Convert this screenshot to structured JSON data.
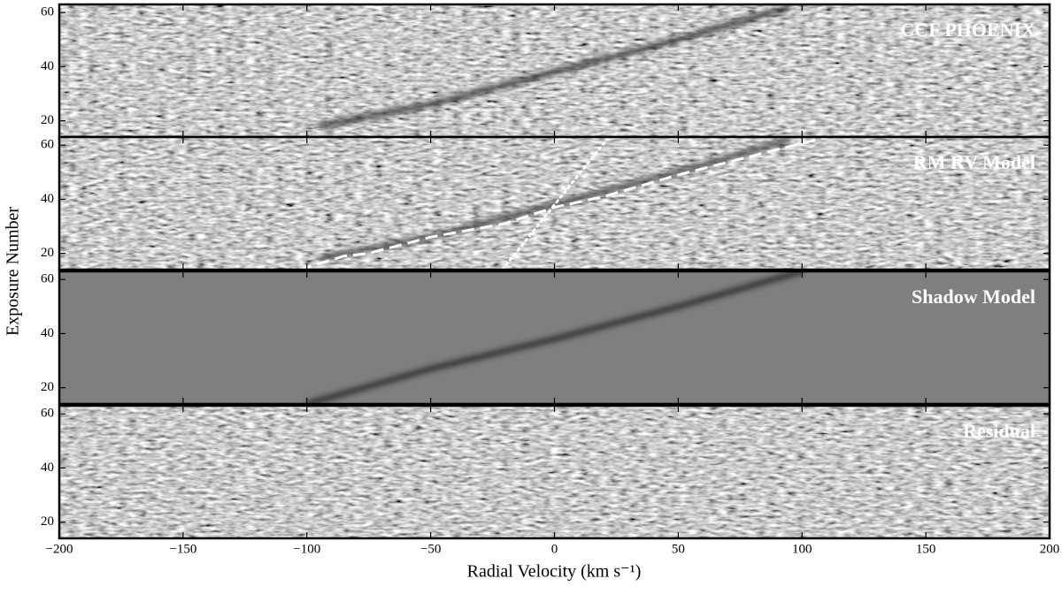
{
  "chart_data": {
    "type": "heatmap",
    "xlabel": "Radial Velocity (km s⁻¹)",
    "ylabel": "Exposure Number",
    "xlim": [
      -200,
      200
    ],
    "xticks": [
      {
        "value": -200,
        "label": "−200"
      },
      {
        "value": -150,
        "label": "−150"
      },
      {
        "value": -100,
        "label": "−100"
      },
      {
        "value": -50,
        "label": "−50"
      },
      0,
      50,
      100,
      150,
      200
    ],
    "panels": [
      {
        "title": "CCF PHOENIX",
        "ylim": [
          14,
          63
        ],
        "yticks": [
          20,
          40,
          60
        ],
        "background": "noise",
        "series": [
          {
            "color": "#222222",
            "style": "blur",
            "x": [
              -95,
              -50,
              0,
              50,
              95
            ],
            "values": [
              18,
              26,
              38,
              50,
              62
            ]
          }
        ]
      },
      {
        "title": "RM RV Model",
        "ylim": [
          14,
          63
        ],
        "yticks": [
          20,
          40,
          60
        ],
        "background": "noise",
        "series": [
          {
            "color": "#333333",
            "style": "blur",
            "x": [
              -95,
              -50,
              0,
              50,
              95
            ],
            "values": [
              18,
              26,
              38,
              50,
              62
            ]
          },
          {
            "color": "#ffffff",
            "style": "dashed",
            "x": [
              -103,
              -85,
              -75,
              -50,
              -20,
              0,
              20,
              50,
              80,
              110
            ],
            "values": [
              14,
              19,
              20,
              26,
              31,
              37,
              41,
              49,
              56,
              63
            ]
          },
          {
            "color": "#ffffff",
            "style": "dotted",
            "x": [
              -21,
              22
            ],
            "values": [
              14,
              63
            ]
          }
        ]
      },
      {
        "title": "Shadow Model",
        "ylim": [
          14,
          63
        ],
        "yticks": [
          20,
          40,
          60
        ],
        "background": "flat",
        "series": [
          {
            "color": "#222222",
            "style": "blur",
            "x": [
              -100,
              -50,
              0,
              50,
              100
            ],
            "values": [
              14,
              27,
              38,
              50,
              63
            ]
          }
        ]
      },
      {
        "title": "Residual",
        "ylim": [
          14,
          63
        ],
        "yticks": [
          20,
          40,
          60
        ],
        "background": "noise",
        "series": []
      }
    ]
  }
}
